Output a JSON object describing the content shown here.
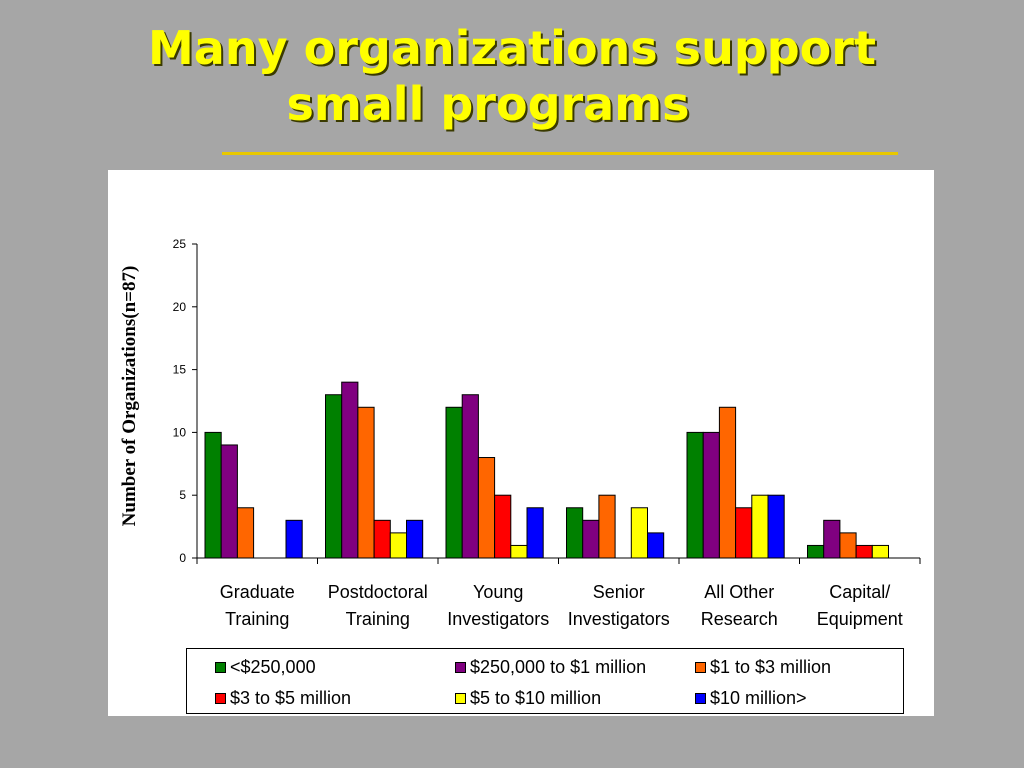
{
  "slide": {
    "title_line1": "Many organizations support",
    "title_line2": "small programs"
  },
  "chart_data": {
    "type": "bar",
    "ylabel": "Number of Organizations(n=87)",
    "ylim": [
      0,
      25
    ],
    "yticks": [
      0,
      5,
      10,
      15,
      20,
      25
    ],
    "categories": [
      [
        "Graduate",
        "Training"
      ],
      [
        "Postdoctoral",
        "Training"
      ],
      [
        "Young",
        "Investigators"
      ],
      [
        "Senior",
        "Investigators"
      ],
      [
        "All Other",
        "Research"
      ],
      [
        "Capital/",
        "Equipment"
      ]
    ],
    "series": [
      {
        "name": "<$250,000",
        "color": "#008000",
        "values": [
          10,
          13,
          12,
          4,
          10,
          1
        ]
      },
      {
        "name": "$250,000 to $1 million",
        "color": "#800080",
        "values": [
          9,
          14,
          13,
          3,
          10,
          3
        ]
      },
      {
        "name": "$1 to $3 million",
        "color": "#ff6600",
        "values": [
          4,
          12,
          8,
          5,
          12,
          2
        ]
      },
      {
        "name": "$3 to $5 million",
        "color": "#ff0000",
        "values": [
          0,
          3,
          5,
          0,
          4,
          1
        ]
      },
      {
        "name": "$5 to $10 million",
        "color": "#ffff00",
        "values": [
          0,
          2,
          1,
          4,
          5,
          1
        ]
      },
      {
        "name": "$10 million>",
        "color": "#0000ff",
        "values": [
          3,
          3,
          4,
          2,
          5,
          0
        ]
      }
    ],
    "legend_position": "bottom",
    "grid": false
  }
}
